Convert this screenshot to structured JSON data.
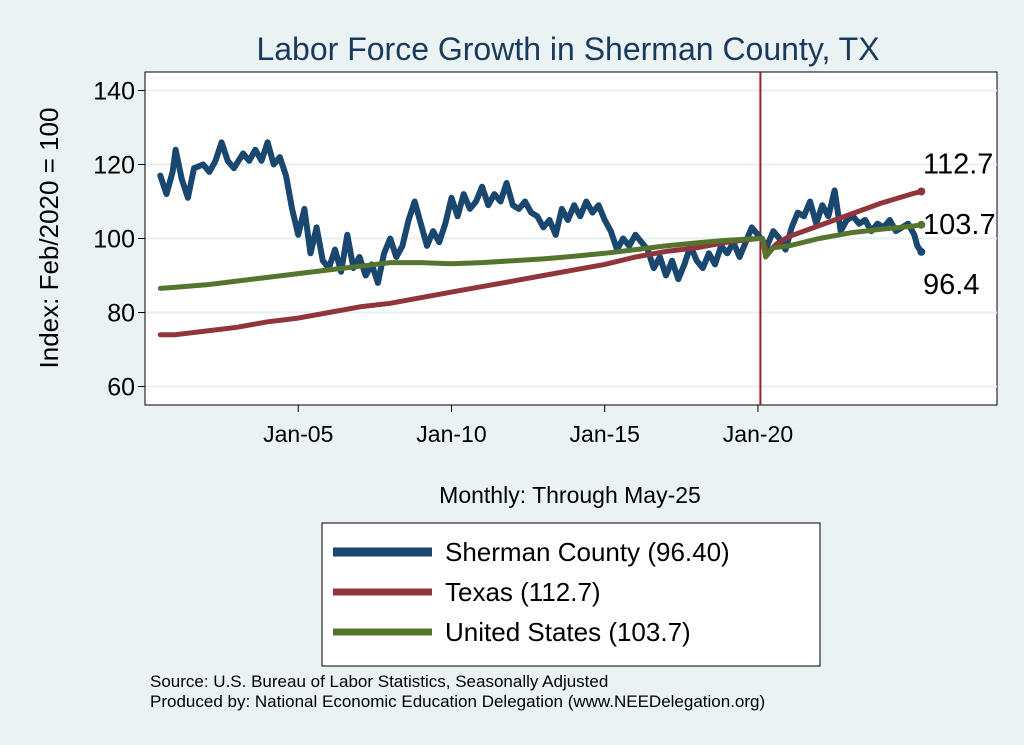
{
  "chart_data": {
    "type": "line",
    "title": "Labor Force Growth in Sherman  County, TX",
    "xlabel": "Monthly: Through May-25",
    "ylabel": "Index: Feb/2020 = 100",
    "ylim": [
      55,
      145
    ],
    "yticks": [
      60,
      80,
      100,
      120,
      140
    ],
    "xlim": [
      2000.0,
      2027.8
    ],
    "xticks": [
      {
        "label": "Jan-05",
        "value": 2005.0
      },
      {
        "label": "Jan-10",
        "value": 2010.0
      },
      {
        "label": "Jan-15",
        "value": 2015.0
      },
      {
        "label": "Jan-20",
        "value": 2020.0
      }
    ],
    "reference_line": {
      "x": 2020.08,
      "color": "#a3192f"
    },
    "grid": true,
    "series": [
      {
        "name": "Sherman  County",
        "legend_label": "Sherman  County (96.40)",
        "color": "#1a476f",
        "end_label": "96.4",
        "points": [
          [
            2000.5,
            117
          ],
          [
            2000.7,
            112
          ],
          [
            2000.9,
            118
          ],
          [
            2001.0,
            124
          ],
          [
            2001.2,
            116
          ],
          [
            2001.4,
            111
          ],
          [
            2001.6,
            119
          ],
          [
            2001.9,
            120
          ],
          [
            2002.1,
            118
          ],
          [
            2002.3,
            121
          ],
          [
            2002.5,
            126
          ],
          [
            2002.7,
            121
          ],
          [
            2002.9,
            119
          ],
          [
            2003.2,
            123
          ],
          [
            2003.4,
            121
          ],
          [
            2003.6,
            124
          ],
          [
            2003.8,
            121
          ],
          [
            2004.0,
            126
          ],
          [
            2004.2,
            120
          ],
          [
            2004.4,
            122
          ],
          [
            2004.6,
            117
          ],
          [
            2004.8,
            108
          ],
          [
            2005.0,
            101
          ],
          [
            2005.2,
            108
          ],
          [
            2005.4,
            96
          ],
          [
            2005.6,
            103
          ],
          [
            2005.8,
            94
          ],
          [
            2006.0,
            92
          ],
          [
            2006.2,
            97
          ],
          [
            2006.4,
            91
          ],
          [
            2006.6,
            101
          ],
          [
            2006.8,
            92
          ],
          [
            2007.0,
            95
          ],
          [
            2007.2,
            90
          ],
          [
            2007.4,
            93
          ],
          [
            2007.6,
            88
          ],
          [
            2007.8,
            96
          ],
          [
            2008.0,
            100
          ],
          [
            2008.2,
            95
          ],
          [
            2008.4,
            98
          ],
          [
            2008.6,
            105
          ],
          [
            2008.8,
            110
          ],
          [
            2009.0,
            104
          ],
          [
            2009.2,
            98
          ],
          [
            2009.4,
            102
          ],
          [
            2009.6,
            99
          ],
          [
            2009.8,
            104
          ],
          [
            2010.0,
            111
          ],
          [
            2010.2,
            106
          ],
          [
            2010.4,
            112
          ],
          [
            2010.6,
            108
          ],
          [
            2010.8,
            110
          ],
          [
            2011.0,
            114
          ],
          [
            2011.2,
            109
          ],
          [
            2011.4,
            112
          ],
          [
            2011.6,
            110
          ],
          [
            2011.8,
            115
          ],
          [
            2012.0,
            109
          ],
          [
            2012.2,
            108
          ],
          [
            2012.4,
            110
          ],
          [
            2012.6,
            107
          ],
          [
            2012.8,
            106
          ],
          [
            2013.0,
            103
          ],
          [
            2013.2,
            105
          ],
          [
            2013.4,
            101
          ],
          [
            2013.6,
            108
          ],
          [
            2013.8,
            105
          ],
          [
            2014.0,
            109
          ],
          [
            2014.2,
            106
          ],
          [
            2014.4,
            110
          ],
          [
            2014.6,
            107
          ],
          [
            2014.8,
            109
          ],
          [
            2015.0,
            105
          ],
          [
            2015.2,
            102
          ],
          [
            2015.4,
            97
          ],
          [
            2015.6,
            100
          ],
          [
            2015.8,
            98
          ],
          [
            2016.0,
            101
          ],
          [
            2016.2,
            99
          ],
          [
            2016.4,
            97
          ],
          [
            2016.6,
            92
          ],
          [
            2016.8,
            95
          ],
          [
            2017.0,
            90
          ],
          [
            2017.2,
            94
          ],
          [
            2017.4,
            89
          ],
          [
            2017.6,
            93
          ],
          [
            2017.8,
            98
          ],
          [
            2018.0,
            94
          ],
          [
            2018.2,
            92
          ],
          [
            2018.4,
            96
          ],
          [
            2018.6,
            93
          ],
          [
            2018.8,
            98
          ],
          [
            2019.0,
            96
          ],
          [
            2019.2,
            99
          ],
          [
            2019.4,
            95
          ],
          [
            2019.6,
            99
          ],
          [
            2019.8,
            103
          ],
          [
            2020.0,
            101
          ],
          [
            2020.1,
            100
          ],
          [
            2020.3,
            98
          ],
          [
            2020.5,
            102
          ],
          [
            2020.7,
            100
          ],
          [
            2020.9,
            97
          ],
          [
            2021.1,
            103
          ],
          [
            2021.3,
            107
          ],
          [
            2021.5,
            106
          ],
          [
            2021.7,
            110
          ],
          [
            2021.9,
            104
          ],
          [
            2022.1,
            109
          ],
          [
            2022.3,
            106
          ],
          [
            2022.5,
            113
          ],
          [
            2022.7,
            102
          ],
          [
            2022.9,
            105
          ],
          [
            2023.1,
            106
          ],
          [
            2023.3,
            104
          ],
          [
            2023.5,
            105
          ],
          [
            2023.7,
            102
          ],
          [
            2023.9,
            104
          ],
          [
            2024.1,
            103
          ],
          [
            2024.3,
            105
          ],
          [
            2024.5,
            102
          ],
          [
            2024.7,
            103
          ],
          [
            2024.9,
            104
          ],
          [
            2025.1,
            101
          ],
          [
            2025.2,
            98
          ],
          [
            2025.33,
            96.4
          ]
        ]
      },
      {
        "name": "Texas",
        "legend_label": "Texas (112.7)",
        "color": "#90353b",
        "end_label": "112.7",
        "points": [
          [
            2000.5,
            74
          ],
          [
            2001.0,
            74
          ],
          [
            2002.0,
            75
          ],
          [
            2003.0,
            76
          ],
          [
            2004.0,
            77.5
          ],
          [
            2005.0,
            78.5
          ],
          [
            2006.0,
            80
          ],
          [
            2007.0,
            81.5
          ],
          [
            2008.0,
            82.5
          ],
          [
            2009.0,
            84
          ],
          [
            2010.0,
            85.5
          ],
          [
            2011.0,
            87
          ],
          [
            2012.0,
            88.5
          ],
          [
            2013.0,
            90
          ],
          [
            2014.0,
            91.5
          ],
          [
            2015.0,
            93
          ],
          [
            2016.0,
            95
          ],
          [
            2017.0,
            96.5
          ],
          [
            2018.0,
            97.5
          ],
          [
            2019.0,
            99
          ],
          [
            2020.0,
            100
          ],
          [
            2020.15,
            100
          ],
          [
            2020.3,
            96
          ],
          [
            2020.6,
            98.5
          ],
          [
            2021.0,
            100.5
          ],
          [
            2022.0,
            103.5
          ],
          [
            2023.0,
            106.5
          ],
          [
            2024.0,
            109.5
          ],
          [
            2025.0,
            112
          ],
          [
            2025.33,
            112.7
          ]
        ]
      },
      {
        "name": "United States",
        "legend_label": "United States (103.7)",
        "color": "#55752f",
        "end_label": "103.7",
        "points": [
          [
            2000.5,
            86.5
          ],
          [
            2001.0,
            86.8
          ],
          [
            2002.0,
            87.5
          ],
          [
            2003.0,
            88.5
          ],
          [
            2004.0,
            89.5
          ],
          [
            2005.0,
            90.5
          ],
          [
            2006.0,
            91.5
          ],
          [
            2007.0,
            92.5
          ],
          [
            2008.0,
            93.5
          ],
          [
            2009.0,
            93.5
          ],
          [
            2010.0,
            93.2
          ],
          [
            2011.0,
            93.5
          ],
          [
            2012.0,
            94
          ],
          [
            2013.0,
            94.5
          ],
          [
            2014.0,
            95.2
          ],
          [
            2015.0,
            96
          ],
          [
            2016.0,
            97
          ],
          [
            2017.0,
            98
          ],
          [
            2018.0,
            98.8
          ],
          [
            2019.0,
            99.5
          ],
          [
            2020.0,
            100
          ],
          [
            2020.15,
            100
          ],
          [
            2020.25,
            95
          ],
          [
            2020.5,
            97.5
          ],
          [
            2021.0,
            98
          ],
          [
            2022.0,
            100
          ],
          [
            2023.0,
            101.5
          ],
          [
            2024.0,
            102.5
          ],
          [
            2025.0,
            103.3
          ],
          [
            2025.33,
            103.7
          ]
        ]
      }
    ]
  },
  "footer": {
    "source": "Source: U.S. Bureau of Labor Statistics, Seasonally Adjusted",
    "produced_by": "Produced by: National Economic Education Delegation (www.NEEDelegation.org)"
  }
}
